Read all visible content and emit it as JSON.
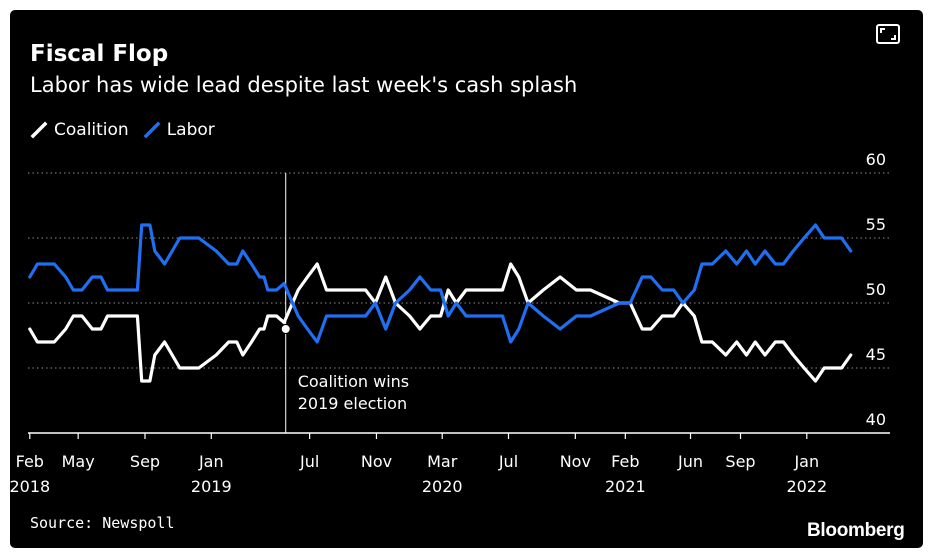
{
  "header": {
    "title": "Fiscal Flop",
    "subtitle": "Labor has wide lead despite last week's cash splash"
  },
  "legend": {
    "coalition": "Coalition",
    "labor": "Labor"
  },
  "colors": {
    "coalition": "#ffffff",
    "labor": "#1f6ff2",
    "background": "#000000",
    "grid": "#8c8c8c"
  },
  "expand_icon": "expand-icon",
  "footer": {
    "source": "Source: Newspoll",
    "brand": "Bloomberg"
  },
  "chart_data": {
    "type": "line",
    "title": "Fiscal Flop",
    "subtitle": "Labor has wide lead despite last week's cash splash",
    "xlabel": "",
    "ylabel": "",
    "x_range": [
      "2018-01-25",
      "2022-05-01"
    ],
    "ylim": [
      40,
      60
    ],
    "y_ticks": [
      40,
      45,
      50,
      55,
      60
    ],
    "grid": true,
    "legend_position": "top-left",
    "x_ticks": [
      {
        "date": "2018-02-01",
        "month": "Feb",
        "year": "2018"
      },
      {
        "date": "2018-05-01",
        "month": "May",
        "year": ""
      },
      {
        "date": "2018-09-01",
        "month": "Sep",
        "year": ""
      },
      {
        "date": "2019-01-01",
        "month": "Jan",
        "year": "2019"
      },
      {
        "date": "2019-07-01",
        "month": "Jul",
        "year": ""
      },
      {
        "date": "2019-11-01",
        "month": "Nov",
        "year": ""
      },
      {
        "date": "2020-03-01",
        "month": "Mar",
        "year": "2020"
      },
      {
        "date": "2020-07-01",
        "month": "Jul",
        "year": ""
      },
      {
        "date": "2020-11-01",
        "month": "Nov",
        "year": ""
      },
      {
        "date": "2021-02-01",
        "month": "Feb",
        "year": "2021"
      },
      {
        "date": "2021-06-01",
        "month": "Jun",
        "year": ""
      },
      {
        "date": "2021-09-01",
        "month": "Sep",
        "year": ""
      },
      {
        "date": "2022-01-01",
        "month": "Jan",
        "year": "2022"
      }
    ],
    "annotation": {
      "date": "2019-05-18",
      "value": 48,
      "lines": [
        "Coalition wins",
        "2019 election"
      ]
    },
    "series": [
      {
        "name": "Coalition",
        "points": [
          [
            "2018-02-01",
            48
          ],
          [
            "2018-02-15",
            47
          ],
          [
            "2018-03-01",
            47
          ],
          [
            "2018-03-18",
            47
          ],
          [
            "2018-04-08",
            48
          ],
          [
            "2018-04-22",
            49
          ],
          [
            "2018-05-08",
            49
          ],
          [
            "2018-05-27",
            48
          ],
          [
            "2018-06-12",
            48
          ],
          [
            "2018-06-24",
            49
          ],
          [
            "2018-07-16",
            49
          ],
          [
            "2018-08-06",
            49
          ],
          [
            "2018-08-18",
            49
          ],
          [
            "2018-08-26",
            44
          ],
          [
            "2018-09-10",
            44
          ],
          [
            "2018-09-19",
            46
          ],
          [
            "2018-10-07",
            47
          ],
          [
            "2018-10-21",
            46
          ],
          [
            "2018-11-04",
            45
          ],
          [
            "2018-11-18",
            45
          ],
          [
            "2018-12-09",
            45
          ],
          [
            "2019-01-10",
            46
          ],
          [
            "2019-02-02",
            47
          ],
          [
            "2019-02-17",
            47
          ],
          [
            "2019-02-28",
            46
          ],
          [
            "2019-03-16",
            47
          ],
          [
            "2019-03-31",
            48
          ],
          [
            "2019-04-08",
            48
          ],
          [
            "2019-04-15",
            49
          ],
          [
            "2019-05-01",
            49
          ],
          [
            "2019-05-15",
            48.5
          ],
          [
            "2019-06-10",
            51
          ],
          [
            "2019-06-27",
            52
          ],
          [
            "2019-07-15",
            53
          ],
          [
            "2019-08-01",
            51
          ],
          [
            "2019-09-05",
            51
          ],
          [
            "2019-10-12",
            51
          ],
          [
            "2019-10-30",
            50
          ],
          [
            "2019-11-18",
            52
          ],
          [
            "2019-12-06",
            50
          ],
          [
            "2020-01-01",
            49
          ],
          [
            "2020-01-20",
            48
          ],
          [
            "2020-02-09",
            49
          ],
          [
            "2020-02-27",
            49
          ],
          [
            "2020-03-12",
            51
          ],
          [
            "2020-03-27",
            50
          ],
          [
            "2020-04-14",
            51
          ],
          [
            "2020-05-01",
            51
          ],
          [
            "2020-05-29",
            51
          ],
          [
            "2020-06-20",
            51
          ],
          [
            "2020-07-05",
            53
          ],
          [
            "2020-07-20",
            52
          ],
          [
            "2020-08-06",
            50
          ],
          [
            "2020-09-03",
            51
          ],
          [
            "2020-10-04",
            52
          ],
          [
            "2020-11-03",
            51
          ],
          [
            "2020-11-29",
            51
          ],
          [
            "2021-01-21",
            50
          ],
          [
            "2021-02-10",
            50
          ],
          [
            "2021-03-04",
            48
          ],
          [
            "2021-03-20",
            48
          ],
          [
            "2021-04-10",
            49
          ],
          [
            "2021-05-01",
            49
          ],
          [
            "2021-05-18",
            50
          ],
          [
            "2021-06-08",
            49
          ],
          [
            "2021-06-22",
            47
          ],
          [
            "2021-07-11",
            47
          ],
          [
            "2021-08-05",
            46
          ],
          [
            "2021-08-25",
            47
          ],
          [
            "2021-09-12",
            46
          ],
          [
            "2021-09-28",
            47
          ],
          [
            "2021-10-16",
            46
          ],
          [
            "2021-11-04",
            47
          ],
          [
            "2021-11-19",
            47
          ],
          [
            "2021-12-07",
            46
          ],
          [
            "2021-12-27",
            45
          ],
          [
            "2022-01-17",
            44
          ],
          [
            "2022-02-02",
            45
          ],
          [
            "2022-02-22",
            45
          ],
          [
            "2022-03-06",
            45
          ],
          [
            "2022-03-23",
            46
          ]
        ]
      },
      {
        "name": "Labor",
        "points": [
          [
            "2018-02-01",
            52
          ],
          [
            "2018-02-15",
            53
          ],
          [
            "2018-03-01",
            53
          ],
          [
            "2018-03-18",
            53
          ],
          [
            "2018-04-08",
            52
          ],
          [
            "2018-04-22",
            51
          ],
          [
            "2018-05-08",
            51
          ],
          [
            "2018-05-27",
            52
          ],
          [
            "2018-06-12",
            52
          ],
          [
            "2018-06-24",
            51
          ],
          [
            "2018-07-16",
            51
          ],
          [
            "2018-08-06",
            51
          ],
          [
            "2018-08-18",
            51
          ],
          [
            "2018-08-26",
            56
          ],
          [
            "2018-09-10",
            56
          ],
          [
            "2018-09-19",
            54
          ],
          [
            "2018-10-07",
            53
          ],
          [
            "2018-10-21",
            54
          ],
          [
            "2018-11-04",
            55
          ],
          [
            "2018-11-18",
            55
          ],
          [
            "2018-12-09",
            55
          ],
          [
            "2019-01-10",
            54
          ],
          [
            "2019-02-02",
            53
          ],
          [
            "2019-02-17",
            53
          ],
          [
            "2019-02-28",
            54
          ],
          [
            "2019-03-16",
            53
          ],
          [
            "2019-03-31",
            52
          ],
          [
            "2019-04-08",
            52
          ],
          [
            "2019-04-15",
            51
          ],
          [
            "2019-05-01",
            51
          ],
          [
            "2019-05-15",
            51.5
          ],
          [
            "2019-06-10",
            49
          ],
          [
            "2019-06-27",
            48
          ],
          [
            "2019-07-15",
            47
          ],
          [
            "2019-08-01",
            49
          ],
          [
            "2019-09-05",
            49
          ],
          [
            "2019-10-12",
            49
          ],
          [
            "2019-10-30",
            50
          ],
          [
            "2019-11-18",
            48
          ],
          [
            "2019-12-06",
            50
          ],
          [
            "2020-01-01",
            51
          ],
          [
            "2020-01-20",
            52
          ],
          [
            "2020-02-09",
            51
          ],
          [
            "2020-02-27",
            51
          ],
          [
            "2020-03-12",
            49
          ],
          [
            "2020-03-27",
            50
          ],
          [
            "2020-04-14",
            49
          ],
          [
            "2020-05-01",
            49
          ],
          [
            "2020-05-29",
            49
          ],
          [
            "2020-06-20",
            49
          ],
          [
            "2020-07-05",
            47
          ],
          [
            "2020-07-20",
            48
          ],
          [
            "2020-08-06",
            50
          ],
          [
            "2020-09-03",
            49
          ],
          [
            "2020-10-04",
            48
          ],
          [
            "2020-11-03",
            49
          ],
          [
            "2020-11-29",
            49
          ],
          [
            "2021-01-21",
            50
          ],
          [
            "2021-02-10",
            50
          ],
          [
            "2021-03-04",
            52
          ],
          [
            "2021-03-20",
            52
          ],
          [
            "2021-04-10",
            51
          ],
          [
            "2021-05-01",
            51
          ],
          [
            "2021-05-18",
            50
          ],
          [
            "2021-06-08",
            51
          ],
          [
            "2021-06-22",
            53
          ],
          [
            "2021-07-11",
            53
          ],
          [
            "2021-08-05",
            54
          ],
          [
            "2021-08-25",
            53
          ],
          [
            "2021-09-12",
            54
          ],
          [
            "2021-09-28",
            53
          ],
          [
            "2021-10-16",
            54
          ],
          [
            "2021-11-04",
            53
          ],
          [
            "2021-11-19",
            53
          ],
          [
            "2021-12-07",
            54
          ],
          [
            "2021-12-27",
            55
          ],
          [
            "2022-01-17",
            56
          ],
          [
            "2022-02-02",
            55
          ],
          [
            "2022-02-22",
            55
          ],
          [
            "2022-03-06",
            55
          ],
          [
            "2022-03-23",
            54
          ]
        ]
      }
    ]
  }
}
